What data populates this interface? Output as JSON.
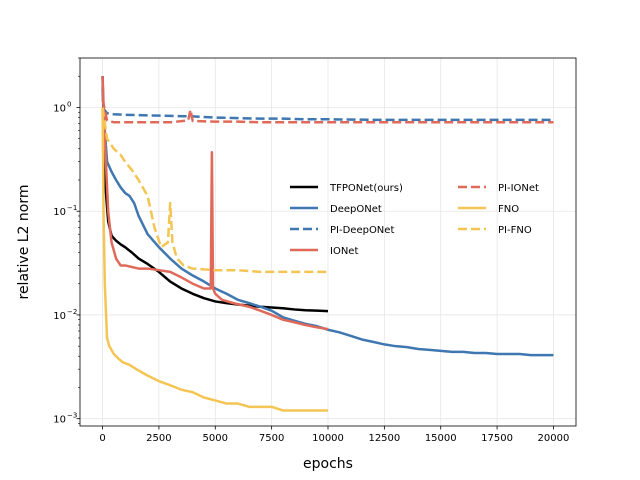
{
  "chart_data": {
    "type": "line",
    "xlabel": "epochs",
    "ylabel": "relative L2 norm",
    "xlim": [
      -1000,
      21000
    ],
    "ylim": [
      0.00085,
      3.0
    ],
    "yscale": "log",
    "grid": true,
    "legend_position": "center-right",
    "x_ticks": [
      0,
      2500,
      5000,
      7500,
      10000,
      12500,
      15000,
      17500,
      20000
    ],
    "x_tick_labels": [
      "0",
      "2500",
      "5000",
      "7500",
      "10000",
      "12500",
      "15000",
      "17500",
      "20000"
    ],
    "y_ticks": [
      0.001,
      0.01,
      0.1,
      1
    ],
    "y_tick_labels": [
      "10",
      "10",
      "10",
      "10"
    ],
    "y_tick_exponents": [
      "−3",
      "−2",
      "−1",
      "0"
    ],
    "series": [
      {
        "name": "TFPONet(ours)",
        "color": "#000000",
        "dash": "solid",
        "x": [
          0,
          60,
          150,
          250,
          400,
          600,
          800,
          1000,
          1300,
          1600,
          2000,
          2500,
          3000,
          3500,
          4000,
          4500,
          5000,
          5500,
          6000,
          6500,
          7000,
          7500,
          8000,
          8500,
          9000,
          9500,
          10000
        ],
        "y": [
          2.0,
          0.6,
          0.15,
          0.08,
          0.058,
          0.052,
          0.048,
          0.045,
          0.04,
          0.035,
          0.031,
          0.026,
          0.021,
          0.018,
          0.016,
          0.0145,
          0.0135,
          0.013,
          0.0126,
          0.0123,
          0.012,
          0.0118,
          0.0116,
          0.0113,
          0.0111,
          0.011,
          0.0109
        ]
      },
      {
        "name": "DeepONet",
        "color": "#3f77b0",
        "dash": "solid",
        "x": [
          0,
          100,
          200,
          400,
          600,
          800,
          1000,
          1200,
          1400,
          1600,
          2000,
          2500,
          3000,
          3500,
          4000,
          4500,
          5000,
          5500,
          6000,
          6500,
          7000,
          7500,
          8000,
          8500,
          9000,
          9500,
          10000,
          10500,
          11000,
          11500,
          12000,
          12500,
          13000,
          13500,
          14000,
          14500,
          15000,
          15500,
          16000,
          16500,
          17000,
          17500,
          18000,
          18500,
          19000,
          19500,
          20000
        ],
        "y": [
          1.5,
          0.6,
          0.3,
          0.24,
          0.2,
          0.17,
          0.15,
          0.14,
          0.12,
          0.09,
          0.06,
          0.045,
          0.035,
          0.028,
          0.024,
          0.021,
          0.018,
          0.016,
          0.014,
          0.013,
          0.012,
          0.011,
          0.0095,
          0.0088,
          0.0082,
          0.0078,
          0.0072,
          0.0068,
          0.0063,
          0.0058,
          0.0055,
          0.0052,
          0.005,
          0.0049,
          0.0047,
          0.0046,
          0.0045,
          0.0044,
          0.0044,
          0.0043,
          0.0043,
          0.0042,
          0.0042,
          0.0042,
          0.0041,
          0.0041,
          0.0041
        ]
      },
      {
        "name": "PI-DeepONet",
        "color": "#3f77b0",
        "dash": "dashed",
        "x": [
          0,
          200,
          500,
          1000,
          2000,
          3000,
          4000,
          5000,
          6000,
          7000,
          8000,
          9000,
          10000,
          12000,
          14000,
          16000,
          18000,
          20000
        ],
        "y": [
          1.0,
          0.88,
          0.86,
          0.85,
          0.84,
          0.83,
          0.82,
          0.8,
          0.79,
          0.78,
          0.78,
          0.77,
          0.77,
          0.76,
          0.76,
          0.76,
          0.76,
          0.76
        ]
      },
      {
        "name": "IONet",
        "color": "#e06a5a",
        "dash": "solid",
        "x": [
          0,
          100,
          250,
          400,
          600,
          800,
          1000,
          1300,
          1600,
          2000,
          2500,
          3000,
          3500,
          4000,
          4500,
          4800,
          4850,
          4900,
          5000,
          5300,
          5800,
          6500,
          7000,
          7500,
          8000,
          8500,
          9000,
          9500,
          10000
        ],
        "y": [
          2.0,
          0.5,
          0.1,
          0.05,
          0.035,
          0.03,
          0.03,
          0.029,
          0.028,
          0.028,
          0.027,
          0.026,
          0.023,
          0.02,
          0.018,
          0.018,
          0.37,
          0.018,
          0.016,
          0.014,
          0.013,
          0.012,
          0.011,
          0.01,
          0.009,
          0.0085,
          0.008,
          0.0076,
          0.0073
        ]
      },
      {
        "name": "PI-IONet",
        "color": "#e06a5a",
        "dash": "dashed",
        "x": [
          0,
          200,
          500,
          1000,
          2000,
          3000,
          3800,
          3900,
          4000,
          5000,
          6000,
          7000,
          8000,
          9000,
          10000,
          12000,
          14000,
          16000,
          18000,
          20000
        ],
        "y": [
          1.2,
          0.75,
          0.72,
          0.72,
          0.72,
          0.72,
          0.75,
          0.95,
          0.74,
          0.73,
          0.73,
          0.72,
          0.72,
          0.72,
          0.72,
          0.72,
          0.72,
          0.72,
          0.72,
          0.72
        ]
      },
      {
        "name": "FNO",
        "color": "#f4c552",
        "dash": "solid",
        "x": [
          0,
          50,
          100,
          200,
          300,
          500,
          700,
          900,
          1200,
          1500,
          2000,
          2500,
          3000,
          3500,
          4000,
          4500,
          5000,
          5500,
          6000,
          6500,
          7000,
          7500,
          8000,
          8500,
          9000,
          9500,
          10000
        ],
        "y": [
          1.0,
          0.08,
          0.02,
          0.006,
          0.005,
          0.0042,
          0.0038,
          0.0035,
          0.0033,
          0.003,
          0.0026,
          0.0023,
          0.0021,
          0.0019,
          0.0018,
          0.0016,
          0.0015,
          0.0014,
          0.0014,
          0.0013,
          0.0013,
          0.0013,
          0.0012,
          0.0012,
          0.0012,
          0.0012,
          0.0012
        ]
      },
      {
        "name": "PI-FNO",
        "color": "#f4c552",
        "dash": "dashed",
        "x": [
          0,
          200,
          500,
          800,
          1000,
          1300,
          1600,
          2000,
          2300,
          2600,
          2900,
          3000,
          3100,
          3300,
          3600,
          4000,
          5000,
          6000,
          7000,
          8000,
          9000,
          10000
        ],
        "y": [
          1.0,
          0.5,
          0.4,
          0.35,
          0.3,
          0.25,
          0.2,
          0.14,
          0.07,
          0.045,
          0.05,
          0.12,
          0.05,
          0.035,
          0.03,
          0.028,
          0.027,
          0.027,
          0.026,
          0.026,
          0.026,
          0.026
        ]
      }
    ]
  }
}
